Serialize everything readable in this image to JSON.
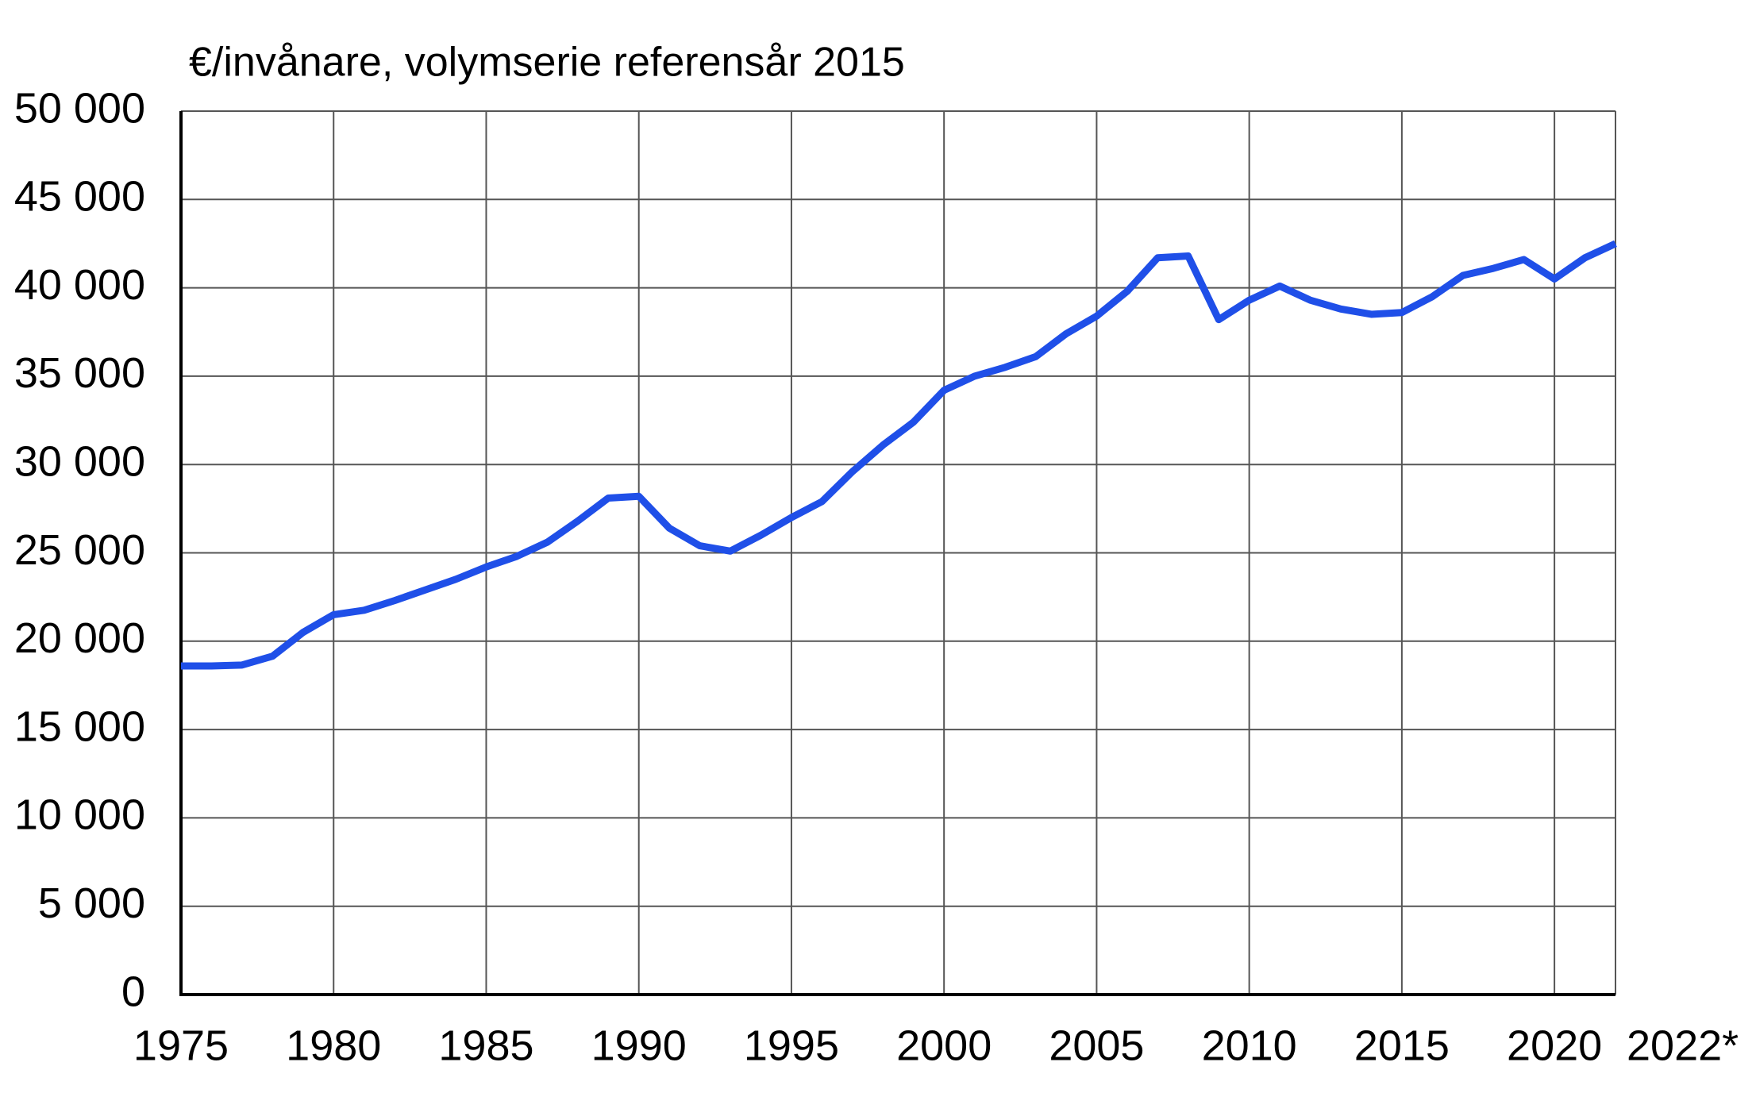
{
  "chart_data": {
    "type": "line",
    "title": "€/invånare, volymserie referensår 2015",
    "x": [
      1975,
      1976,
      1977,
      1978,
      1979,
      1980,
      1981,
      1982,
      1983,
      1984,
      1985,
      1986,
      1987,
      1988,
      1989,
      1990,
      1991,
      1992,
      1993,
      1994,
      1995,
      1996,
      1997,
      1998,
      1999,
      2000,
      2001,
      2002,
      2003,
      2004,
      2005,
      2006,
      2007,
      2008,
      2009,
      2010,
      2011,
      2012,
      2013,
      2014,
      2015,
      2016,
      2017,
      2018,
      2019,
      2020,
      2021,
      2022
    ],
    "values": [
      18600,
      18600,
      18650,
      19150,
      20500,
      21500,
      21750,
      22300,
      22900,
      23500,
      24200,
      24800,
      25600,
      26800,
      28100,
      28200,
      26400,
      25400,
      25100,
      26000,
      27000,
      27900,
      29600,
      31100,
      32400,
      34200,
      35000,
      35500,
      36100,
      37400,
      38400,
      39800,
      41700,
      41800,
      38200,
      39300,
      40100,
      39300,
      38800,
      38500,
      38600,
      39500,
      40700,
      41100,
      41600,
      40500,
      41700,
      42500
    ],
    "color": "#1f4fe8",
    "xlim": [
      1975,
      2022
    ],
    "xticks": [
      1975,
      1980,
      1985,
      1990,
      1995,
      2000,
      2005,
      2010,
      2015,
      2020,
      {
        "value": 2022,
        "label": "2022*"
      }
    ],
    "ylim": [
      0,
      50000
    ],
    "yticks": [
      0,
      {
        "value": 5000,
        "label": "5 000"
      },
      {
        "value": 10000,
        "label": "10 000"
      },
      {
        "value": 15000,
        "label": "15 000"
      },
      {
        "value": 20000,
        "label": "20 000"
      },
      {
        "value": 25000,
        "label": "25 000"
      },
      {
        "value": 30000,
        "label": "30 000"
      },
      {
        "value": 35000,
        "label": "35 000"
      },
      {
        "value": 40000,
        "label": "40 000"
      },
      {
        "value": 45000,
        "label": "45 000"
      },
      {
        "value": 50000,
        "label": "50 000"
      }
    ],
    "grid": true
  }
}
